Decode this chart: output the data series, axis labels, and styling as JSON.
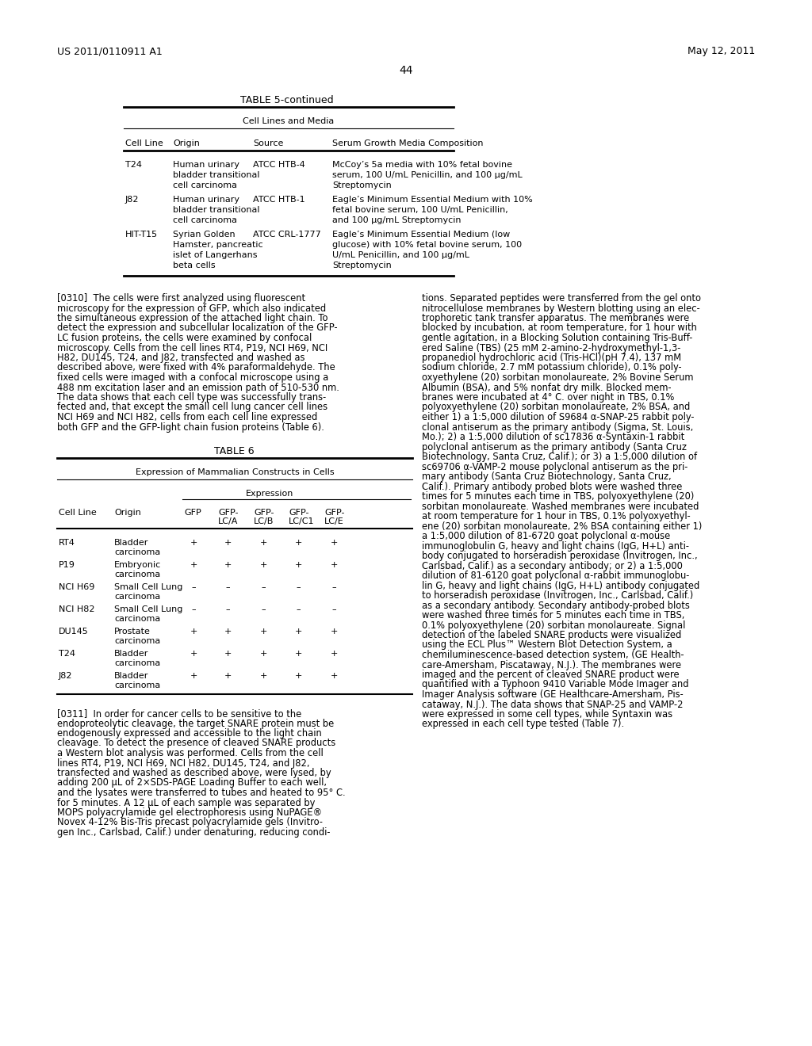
{
  "header_left": "US 2011/0110911 A1",
  "header_right": "May 12, 2011",
  "page_number": "44",
  "table5_title": "TABLE 5-continued",
  "table5_subtitle": "Cell Lines and Media",
  "table5_row1_cellline": "T24",
  "table5_row1_origin": [
    "Human urinary",
    "bladder transitional",
    "cell carcinoma"
  ],
  "table5_row1_source": "ATCC HTB-4",
  "table5_row1_media": [
    "McCoy’s 5a media with 10% fetal bovine",
    "serum, 100 U/mL Penicillin, and 100 μg/mL",
    "Streptomycin"
  ],
  "table5_row2_cellline": "J82",
  "table5_row2_origin": [
    "Human urinary",
    "bladder transitional",
    "cell carcinoma"
  ],
  "table5_row2_source": "ATCC HTB-1",
  "table5_row2_media": [
    "Eagle’s Minimum Essential Medium with 10%",
    "fetal bovine serum, 100 U/mL Penicillin,",
    "and 100 μg/mL Streptomycin"
  ],
  "table5_row3_cellline": "HIT-T15",
  "table5_row3_origin": [
    "Syrian Golden",
    "Hamster, pancreatic",
    "islet of Langerhans",
    "beta cells"
  ],
  "table5_row3_source": "ATCC CRL-1777",
  "table5_row3_media": [
    "Eagle’s Minimum Essential Medium (low",
    "glucose) with 10% fetal bovine serum, 100",
    "U/mL Penicillin, and 100 μg/mL",
    "Streptomycin"
  ],
  "para_0310_left": [
    "[0310]  The cells were first analyzed using fluorescent",
    "microscopy for the expression of GFP, which also indicated",
    "the simultaneous expression of the attached light chain. To",
    "detect the expression and subcellular localization of the GFP-",
    "LC fusion proteins, the cells were examined by confocal",
    "microscopy. Cells from the cell lines RT4, P19, NCI H69, NCI",
    "H82, DU145, T24, and J82, transfected and washed as",
    "described above, were fixed with 4% paraformaldehyde. The",
    "fixed cells were imaged with a confocal microscope using a",
    "488 nm excitation laser and an emission path of 510-530 nm.",
    "The data shows that each cell type was successfully trans-",
    "fected and, that except the small cell lung cancer cell lines",
    "NCI H69 and NCI H82, cells from each cell line expressed",
    "both GFP and the GFP-light chain fusion proteins (Table 6)."
  ],
  "para_0310_right": [
    "tions. Separated peptides were transferred from the gel onto",
    "nitrocellulose membranes by Western blotting using an elec-",
    "trophoretic tank transfer apparatus. The membranes were",
    "blocked by incubation, at room temperature, for 1 hour with",
    "gentle agitation, in a Blocking Solution containing Tris-Buff-",
    "ered Saline (TBS) (25 mM 2-amino-2-hydroxymethyl-1,3-",
    "propanediol hydrochloric acid (Tris-HCl)(pH 7.4), 137 mM",
    "sodium chloride, 2.7 mM potassium chloride), 0.1% poly-",
    "oxyethylene (20) sorbitan monolaureate, 2% Bovine Serum",
    "Albumin (BSA), and 5% nonfat dry milk. Blocked mem-",
    "branes were incubated at 4° C. over night in TBS, 0.1%",
    "polyoxyethylene (20) sorbitan monolaureate, 2% BSA, and",
    "either 1) a 1:5,000 dilution of S9684 α-SNAP-25 rabbit poly-",
    "clonal antiserum as the primary antibody (Sigma, St. Louis,",
    "Mo.); 2) a 1:5,000 dilution of sc17836 α-Syntaxin-1 rabbit",
    "polyclonal antiserum as the primary antibody (Santa Cruz",
    "Biotechnology, Santa Cruz, Calif.); or 3) a 1:5,000 dilution of",
    "sc69706 α-VAMP-2 mouse polyclonal antiserum as the pri-",
    "mary antibody (Santa Cruz Biotechnology, Santa Cruz,",
    "Calif.). Primary antibody probed blots were washed three",
    "times for 5 minutes each time in TBS, polyoxyethylene (20)",
    "sorbitan monolaureate. Washed membranes were incubated",
    "at room temperature for 1 hour in TBS, 0.1% polyoxyethyl-",
    "ene (20) sorbitan monolaureate, 2% BSA containing either 1)",
    "a 1:5,000 dilution of 81-6720 goat polyclonal α-mouse",
    "immunoglobulin G, heavy and light chains (IgG, H+L) anti-",
    "body conjugated to horseradish peroxidase (Invitrogen, Inc.,",
    "Carlsbad, Calif.) as a secondary antibody; or 2) a 1:5,000",
    "dilution of 81-6120 goat polyclonal α-rabbit immunoglobu-",
    "lin G, heavy and light chains (IgG, H+L) antibody conjugated",
    "to horseradish peroxidase (Invitrogen, Inc., Carlsbad, Calif.)",
    "as a secondary antibody. Secondary antibody-probed blots",
    "were washed three times for 5 minutes each time in TBS,",
    "0.1% polyoxyethylene (20) sorbitan monolaureate. Signal",
    "detection of the labeled SNARE products were visualized",
    "using the ECL Plus™ Western Blot Detection System, a",
    "chemiluminescence-based detection system, (GE Health-",
    "care-Amersham, Piscataway, N.J.). The membranes were",
    "imaged and the percent of cleaved SNARE product were",
    "quantified with a Typhoon 9410 Variable Mode Imager and",
    "Imager Analysis software (GE Healthcare-Amersham, Pis-",
    "cataway, N.J.). The data shows that SNAP-25 and VAMP-2",
    "were expressed in some cell types, while Syntaxin was",
    "expressed in each cell type tested (Table 7)."
  ],
  "table6_title": "TABLE 6",
  "table6_subtitle": "Expression of Mammalian Constructs in Cells",
  "table6_rows": [
    {
      "cell_line": "RT4",
      "origin": [
        "Bladder",
        "carcinoma"
      ],
      "gfp": "+",
      "lcA": "+",
      "lcB": "+",
      "lcC1": "+",
      "lcE": "+"
    },
    {
      "cell_line": "P19",
      "origin": [
        "Embryonic",
        "carcinoma"
      ],
      "gfp": "+",
      "lcA": "+",
      "lcB": "+",
      "lcC1": "+",
      "lcE": "+"
    },
    {
      "cell_line": "NCI H69",
      "origin": [
        "Small Cell Lung",
        "carcinoma"
      ],
      "gfp": "–",
      "lcA": "–",
      "lcB": "–",
      "lcC1": "–",
      "lcE": "–"
    },
    {
      "cell_line": "NCI H82",
      "origin": [
        "Small Cell Lung",
        "carcinoma"
      ],
      "gfp": "–",
      "lcA": "–",
      "lcB": "–",
      "lcC1": "–",
      "lcE": "–"
    },
    {
      "cell_line": "DU145",
      "origin": [
        "Prostate",
        "carcinoma"
      ],
      "gfp": "+",
      "lcA": "+",
      "lcB": "+",
      "lcC1": "+",
      "lcE": "+"
    },
    {
      "cell_line": "T24",
      "origin": [
        "Bladder",
        "carcinoma"
      ],
      "gfp": "+",
      "lcA": "+",
      "lcB": "+",
      "lcC1": "+",
      "lcE": "+"
    },
    {
      "cell_line": "J82",
      "origin": [
        "Bladder",
        "carcinoma"
      ],
      "gfp": "+",
      "lcA": "+",
      "lcB": "+",
      "lcC1": "+",
      "lcE": "+"
    }
  ],
  "para_0311_left": [
    "[0311]  In order for cancer cells to be sensitive to the",
    "endoproteolytic cleavage, the target SNARE protein must be",
    "endogenously expressed and accessible to the light chain",
    "cleavage. To detect the presence of cleaved SNARE products",
    "a Western blot analysis was performed. Cells from the cell",
    "lines RT4, P19, NCI H69, NCI H82, DU145, T24, and J82,",
    "transfected and washed as described above, were lysed, by",
    "adding 200 μL of 2×SDS-PAGE Loading Buffer to each well,",
    "and the lysates were transferred to tubes and heated to 95° C.",
    "for 5 minutes. A 12 μL of each sample was separated by",
    "MOPS polyacrylamide gel electrophoresis using NuPAGE®",
    "Novex 4-12% Bis-Tris precast polyacrylamide gels (Invitro-",
    "gen Inc., Carlsbad, Calif.) under denaturing, reducing condi-"
  ]
}
